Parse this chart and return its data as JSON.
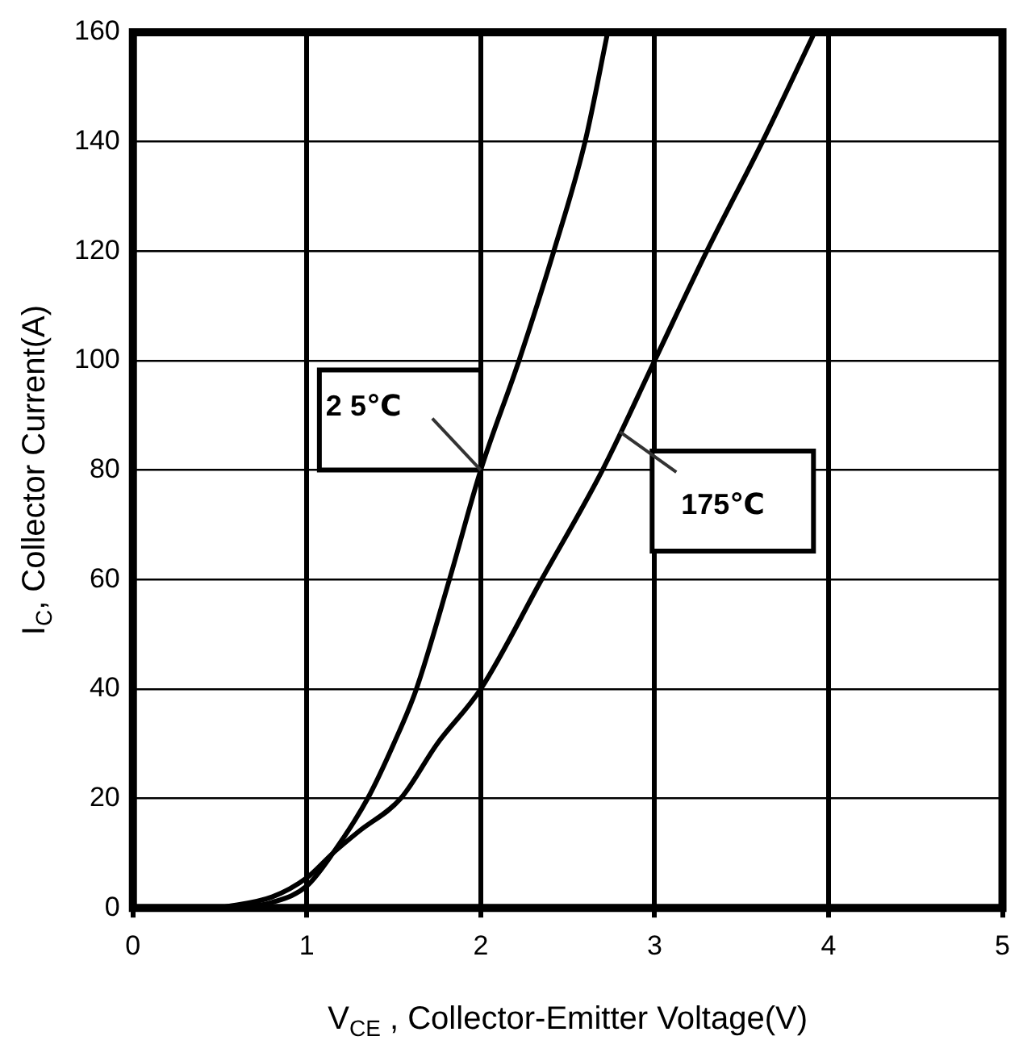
{
  "chart_data": {
    "type": "line",
    "xlabel": "V$_{CE}$ , Collector-Emitter Voltage(V)",
    "ylabel": "I$_{C}$, Collector Current(A)",
    "series": [
      {
        "color": "#000000",
        "x": [
          0.6,
          0.8,
          1,
          1.15,
          1.35,
          1.5,
          1.63,
          1.82,
          2,
          2.22,
          2.42,
          2.6,
          2.73
        ],
        "values": [
          0,
          1,
          4,
          10,
          20,
          30,
          40,
          60,
          80,
          100,
          120,
          140,
          160
        ]
      },
      {
        "color": "#000000",
        "x": [
          0.5,
          0.8,
          1,
          1.15,
          1.3,
          1.54,
          1.75,
          2,
          2.35,
          2.7,
          3,
          3.3,
          3.62,
          3.92
        ],
        "values": [
          0,
          2,
          5.5,
          10,
          14,
          20,
          30,
          40,
          60,
          80,
          100,
          120,
          140,
          160
        ]
      }
    ],
    "annotations": [
      {
        "text": "2 5℃",
        "x": 2,
        "y": 80
      },
      {
        "text": "175℃",
        "x": 2.8,
        "y": 87
      }
    ],
    "xlim": [
      0,
      5
    ],
    "ylim": [
      0,
      160
    ],
    "xticks": [
      0,
      1,
      2,
      3,
      4,
      5
    ],
    "yticks": [
      0,
      20,
      40,
      60,
      80,
      100,
      120,
      140,
      160
    ],
    "grid": true,
    "legend": false,
    "marker": "none",
    "line_style": "solid"
  }
}
